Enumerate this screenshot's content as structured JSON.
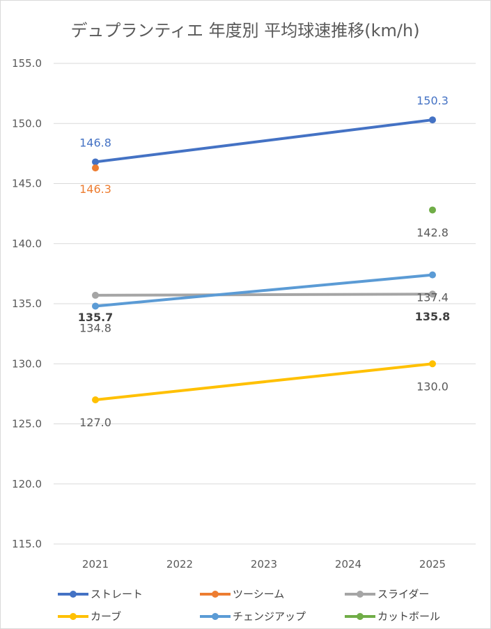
{
  "chart_data": {
    "type": "line",
    "title": "デュプランティエ 年度別 平均球速推移(km/h)",
    "categories": [
      "2021",
      "2022",
      "2023",
      "2024",
      "2025"
    ],
    "ylim": [
      115,
      155
    ],
    "yticks": [
      "115.0",
      "120.0",
      "125.0",
      "130.0",
      "135.0",
      "140.0",
      "145.0",
      "150.0",
      "155.0"
    ],
    "grid": true,
    "legend_position": "bottom",
    "series": [
      {
        "name": "ストレート",
        "color": "#4472C4",
        "points": [
          [
            0,
            146.8
          ],
          [
            4,
            150.3
          ]
        ],
        "labels": [
          "146.8",
          "150.3"
        ]
      },
      {
        "name": "ツーシーム",
        "color": "#ED7D31",
        "points": [
          [
            0,
            146.3
          ]
        ],
        "labels": [
          "146.3"
        ]
      },
      {
        "name": "スライダー",
        "color": "#A5A5A5",
        "points": [
          [
            0,
            135.7
          ],
          [
            4,
            135.8
          ]
        ],
        "labels": [
          "135.7",
          "135.8"
        ]
      },
      {
        "name": "カーブ",
        "color": "#FFC000",
        "points": [
          [
            0,
            127.0
          ],
          [
            4,
            130.0
          ]
        ],
        "labels": [
          "127.0",
          "130.0"
        ]
      },
      {
        "name": "チェンジアップ",
        "color": "#5B9BD5",
        "points": [
          [
            0,
            134.8
          ],
          [
            4,
            137.4
          ]
        ],
        "labels": [
          "134.8",
          "137.4"
        ]
      },
      {
        "name": "カットボール",
        "color": "#70AD47",
        "points": [
          [
            4,
            142.8
          ]
        ],
        "labels": [
          "142.8"
        ]
      }
    ]
  }
}
